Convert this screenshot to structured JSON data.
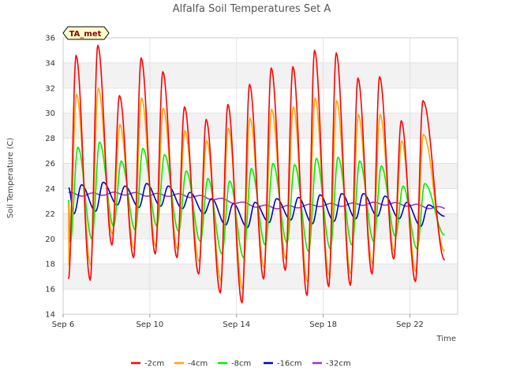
{
  "chart_data": {
    "type": "line",
    "title": "Alfalfa Soil Temperatures Set A",
    "xlabel": "Time",
    "ylabel": "Soil Temperature (C)",
    "badge": "TA_met",
    "xlim": [
      0,
      18.2
    ],
    "ylim": [
      14,
      36
    ],
    "yticks": [
      14,
      16,
      18,
      20,
      22,
      24,
      26,
      28,
      30,
      32,
      34,
      36
    ],
    "xticks": [
      {
        "label": "Sep 6",
        "day": 0
      },
      {
        "label": "Sep 10",
        "day": 4
      },
      {
        "label": "Sep 14",
        "day": 8
      },
      {
        "label": "Sep 18",
        "day": 12
      },
      {
        "label": "Sep 22",
        "day": 16
      }
    ],
    "grid": true,
    "legend_position": "bottom",
    "x_start_day": 0.25,
    "x_end_day": 17.6,
    "series": [
      {
        "name": "-2cm",
        "color": "#ff0000",
        "peak_phase": 0.6,
        "min_phase": 0.25,
        "daily_max": [
          34.6,
          35.4,
          31.4,
          34.4,
          33.3,
          30.5,
          29.5,
          30.7,
          32.3,
          33.6,
          33.7,
          35.0,
          34.8,
          32.8,
          32.9,
          29.4,
          31.0
        ],
        "daily_min": [
          16.8,
          16.7,
          19.5,
          18.5,
          18.8,
          18.5,
          17.2,
          15.7,
          14.9,
          16.8,
          17.5,
          15.5,
          16.2,
          16.3,
          17.2,
          18.4,
          16.6
        ],
        "end_value": 18.3
      },
      {
        "name": "-4cm",
        "color": "#ffa500",
        "peak_phase": 0.62,
        "min_phase": 0.27,
        "daily_max": [
          31.5,
          32.0,
          29.1,
          31.2,
          30.4,
          28.6,
          27.8,
          28.8,
          29.6,
          30.3,
          30.5,
          31.2,
          31.0,
          29.9,
          29.9,
          27.8,
          28.3
        ],
        "daily_min": [
          17.9,
          17.9,
          20.4,
          19.2,
          19.4,
          19.2,
          18.2,
          16.7,
          16.0,
          17.7,
          18.4,
          16.6,
          17.1,
          17.2,
          18.0,
          19.0,
          17.4
        ],
        "end_value": 19.0
      },
      {
        "name": "-8cm",
        "color": "#00ee00",
        "peak_phase": 0.68,
        "min_phase": 0.33,
        "daily_max": [
          27.3,
          27.7,
          26.2,
          27.2,
          26.7,
          25.4,
          24.8,
          24.6,
          25.6,
          26.0,
          25.9,
          26.4,
          26.5,
          26.2,
          25.8,
          24.2,
          24.4
        ],
        "daily_min": [
          19.7,
          20.0,
          21.0,
          20.7,
          21.0,
          20.6,
          19.8,
          18.8,
          18.5,
          19.5,
          19.7,
          19.0,
          19.2,
          19.5,
          19.8,
          20.2,
          19.2
        ],
        "end_value": 20.3
      },
      {
        "name": "-16cm",
        "color": "#0000cc",
        "peak_phase": 0.85,
        "min_phase": 0.5,
        "daily_max": [
          24.3,
          24.5,
          24.2,
          24.4,
          24.2,
          23.7,
          23.2,
          22.8,
          22.9,
          23.2,
          23.3,
          23.5,
          23.6,
          23.6,
          23.4,
          22.9,
          22.7
        ],
        "daily_min": [
          22.0,
          22.2,
          22.7,
          22.5,
          22.6,
          22.4,
          22.0,
          21.1,
          20.9,
          21.3,
          21.5,
          21.2,
          21.4,
          21.6,
          21.8,
          21.6,
          21.0
        ],
        "end_value": 21.8
      },
      {
        "name": "-32cm",
        "color": "#9933cc",
        "kind": "trend",
        "days": [
          0.25,
          1,
          2,
          3,
          4,
          5,
          6,
          7,
          8,
          9,
          10,
          11,
          12,
          13,
          14,
          15,
          16,
          17,
          17.6
        ],
        "values": [
          23.6,
          23.5,
          23.6,
          23.6,
          23.5,
          23.5,
          23.4,
          23.2,
          22.9,
          22.6,
          22.5,
          22.6,
          22.7,
          22.7,
          22.8,
          22.8,
          22.7,
          22.5,
          22.4
        ],
        "ripple": 0.12
      }
    ]
  }
}
